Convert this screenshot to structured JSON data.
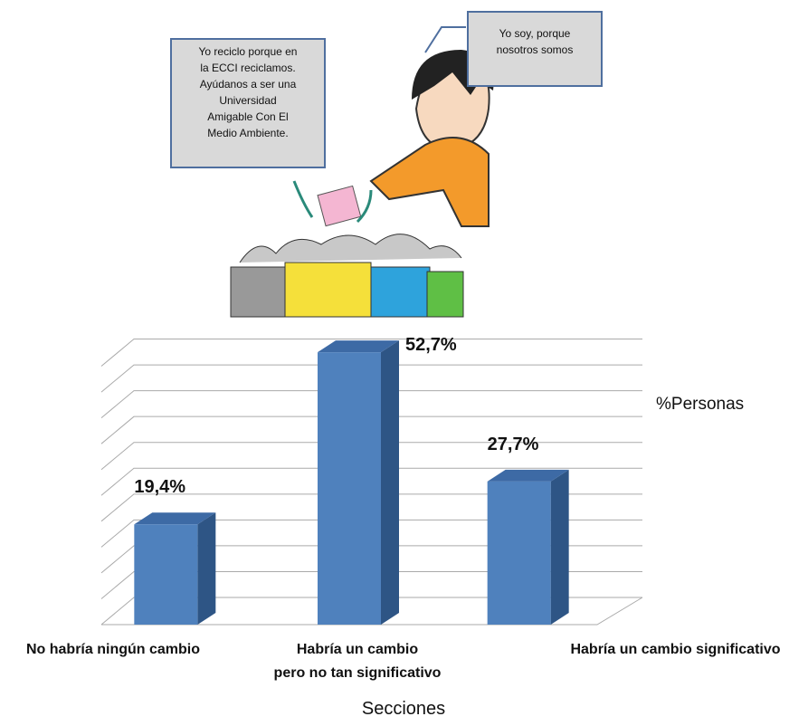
{
  "chart_data": {
    "type": "bar3d",
    "annotations": [
      "Yo reciclo porque en\nla ECCI reciclamos.\nAyúdanos a ser una\nUniversidad\nAmigable Con El\nMedio Ambiente.",
      "Yo soy, porque\nnosotros somos"
    ],
    "x_label": "Secciones",
    "categories": [
      "No habría ningún cambio",
      "Habría un cambio\npero no tan significativo",
      "Habría un cambio significativo"
    ],
    "series": [
      {
        "name": "%Personas",
        "color": "#4f81bd",
        "values": [
          19.4,
          52.7,
          27.7
        ],
        "value_labels": [
          "19,4%",
          "52,7%",
          "27,7%"
        ]
      }
    ],
    "ylim": [
      0,
      55
    ],
    "yticks": [
      0,
      5,
      10,
      15,
      20,
      25,
      30,
      35,
      40,
      45,
      50
    ],
    "grid": true
  }
}
